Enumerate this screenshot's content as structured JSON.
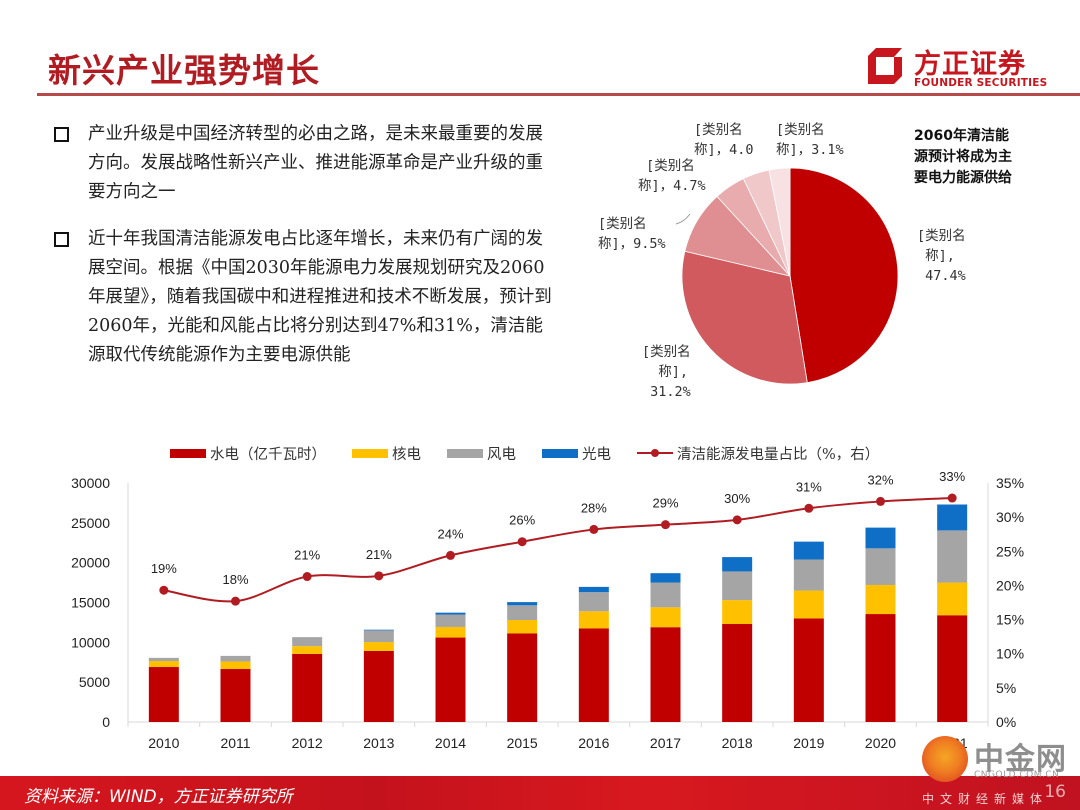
{
  "header": {
    "title": "新兴产业强势增长",
    "logo_cn": "方正证券",
    "logo_en": "FOUNDER SECURITIES"
  },
  "bullets": [
    "产业升级是中国经济转型的必由之路，是未来最重要的发展方向。发展战略性新兴产业、推进能源革命是产业升级的重要方向之一",
    "近十年我国清洁能源发电占比逐年增长，未来仍有广阔的发展空间。根据《中国2030年能源电力发展规划研究及2060年展望》，随着我国碳中和进程推进和技术不断发展，预计到2060年，光能和风能占比将分别达到47%和31%，清洁能源取代传统能源作为主要电源供能"
  ],
  "pie_note": "2060年清洁能源预计将成为主要电力能源供给",
  "footer": {
    "source": "资料来源：WIND，方正证券研究所",
    "page_number": "16"
  },
  "watermark": {
    "cn": "中金网",
    "en": "CNGOLD.COM.CN",
    "sub": "中文财经新媒体"
  },
  "chart_data": [
    {
      "type": "pie",
      "title": "",
      "slices": [
        {
          "label": "[类别名称]",
          "value": 47.4,
          "label_text": "[类别名\n 称],\n 47.4%",
          "color": "#c00000"
        },
        {
          "label": "[类别名称]",
          "value": 31.2,
          "label_text": "[类别名\n  称],\n 31.2%",
          "color": "#d05a5e"
        },
        {
          "label": "[类别名称]",
          "value": 9.5,
          "label_text": "[类别名\n称]，9.5%",
          "color": "#df8e91"
        },
        {
          "label": "[类别名称]",
          "value": 4.7,
          "label_text": " [类别名\n称]，4.7%",
          "color": "#e8acaf"
        },
        {
          "label": "[类别名称]",
          "value": 4.0,
          "label_text": "[类别名\n称]，4.0",
          "color": "#f0c8ca"
        },
        {
          "label": "[类别名称]",
          "value": 3.1,
          "label_text": "[类别名\n称]，3.1%",
          "color": "#f7e1e2"
        }
      ]
    },
    {
      "type": "bar",
      "stacked": true,
      "categories": [
        "2010",
        "2011",
        "2012",
        "2013",
        "2014",
        "2015",
        "2016",
        "2017",
        "2018",
        "2019",
        "2020",
        "2021"
      ],
      "series": [
        {
          "name": "水电（亿千瓦时）",
          "color": "#c00000",
          "values": [
            6900,
            6650,
            8550,
            8920,
            10600,
            11130,
            11750,
            11900,
            12300,
            13000,
            13550,
            13400
          ]
        },
        {
          "name": "核电",
          "color": "#ffc000",
          "values": [
            750,
            950,
            970,
            1110,
            1330,
            1670,
            2150,
            2500,
            3000,
            3500,
            3650,
            4100
          ]
        },
        {
          "name": "风电",
          "color": "#a5a5a5",
          "values": [
            400,
            700,
            1130,
            1470,
            1560,
            1850,
            2400,
            3100,
            3600,
            3900,
            4600,
            6550
          ]
        },
        {
          "name": "光电",
          "color": "#0f6fc6",
          "values": [
            0,
            0,
            0,
            85,
            235,
            400,
            660,
            1180,
            1800,
            2240,
            2600,
            3250
          ]
        }
      ],
      "line_series": {
        "name": "清洁能源发电量占比（%，右）",
        "color": "#b01c22",
        "axis": "right",
        "values": [
          19.3,
          17.7,
          21.3,
          21.4,
          24.4,
          26.4,
          28.2,
          28.9,
          29.6,
          31.3,
          32.3,
          32.8
        ],
        "data_labels": [
          "19%",
          "18%",
          "21%",
          "21%",
          "24%",
          "26%",
          "28%",
          "29%",
          "30%",
          "31%",
          "32%",
          "33%"
        ]
      },
      "y_left": {
        "min": 0,
        "max": 30000,
        "ticks": [
          "0",
          "5000",
          "10000",
          "15000",
          "20000",
          "25000",
          "30000"
        ]
      },
      "y_right": {
        "min": 0,
        "max": 35,
        "ticks": [
          "0%",
          "5%",
          "10%",
          "15%",
          "20%",
          "25%",
          "30%",
          "35%"
        ]
      },
      "xlabel": "",
      "ylabel": "",
      "legend_position": "top",
      "grid": false
    }
  ]
}
